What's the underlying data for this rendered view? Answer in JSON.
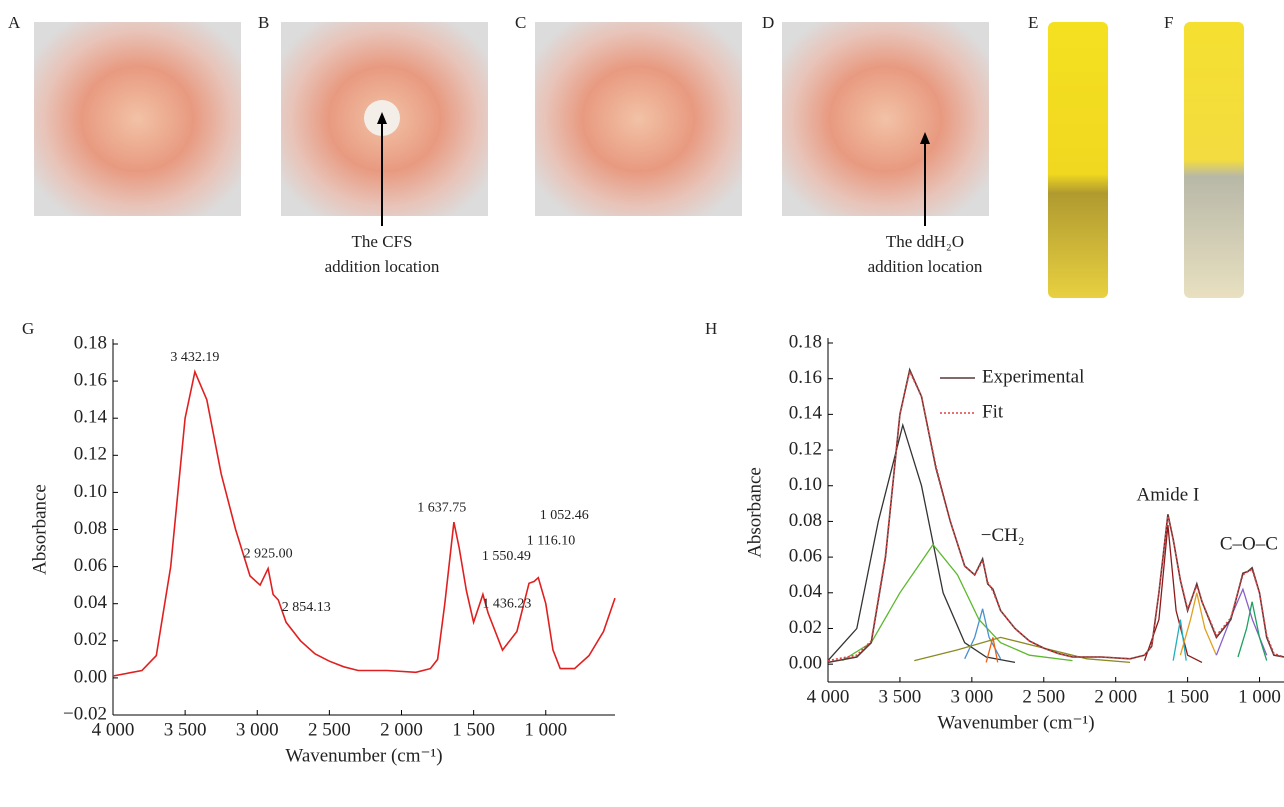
{
  "panels": {
    "labels": [
      "A",
      "B",
      "C",
      "D",
      "E",
      "F"
    ],
    "B_caption": [
      "The CFS",
      "addition location"
    ],
    "D_caption": [
      "The ddH₂O",
      "addition location"
    ]
  },
  "chart_data": [
    {
      "type": "line",
      "title": "G",
      "xlabel": "Wavenumber (cm⁻¹)",
      "ylabel": "Absorbance",
      "xlim": [
        4000,
        520
      ],
      "ylim": [
        -0.02,
        0.18
      ],
      "xticks": [
        {
          "value": 4000,
          "label": "4 000"
        },
        {
          "value": 3500,
          "label": "3 500"
        },
        {
          "value": 3000,
          "label": "3 000"
        },
        {
          "value": 2500,
          "label": "2 500"
        },
        {
          "value": 2000,
          "label": "2 000"
        },
        {
          "value": 1500,
          "label": "1 500"
        },
        {
          "value": 1000,
          "label": "1 000"
        }
      ],
      "yticks": [
        {
          "value": -0.02,
          "label": "−0.02"
        },
        {
          "value": 0,
          "label": "0.00"
        },
        0.02,
        0.04,
        0.06,
        0.08,
        {
          "value": 0.1,
          "label": "0.10"
        },
        0.12,
        0.14,
        0.16,
        0.18
      ],
      "x": [
        4000,
        3800,
        3700,
        3600,
        3500,
        3432,
        3350,
        3250,
        3150,
        3050,
        2980,
        2925,
        2890,
        2854,
        2800,
        2700,
        2600,
        2500,
        2400,
        2300,
        2100,
        1900,
        1800,
        1750,
        1700,
        1637,
        1600,
        1550,
        1500,
        1436,
        1400,
        1300,
        1200,
        1116,
        1080,
        1052,
        1000,
        950,
        900,
        800,
        700,
        600,
        520
      ],
      "series": [
        {
          "color": "#e02020",
          "values": [
            0.001,
            0.004,
            0.012,
            0.06,
            0.14,
            0.165,
            0.15,
            0.11,
            0.08,
            0.055,
            0.05,
            0.059,
            0.045,
            0.042,
            0.03,
            0.02,
            0.013,
            0.009,
            0.006,
            0.004,
            0.004,
            0.003,
            0.005,
            0.01,
            0.04,
            0.084,
            0.07,
            0.047,
            0.03,
            0.045,
            0.035,
            0.015,
            0.025,
            0.051,
            0.052,
            0.054,
            0.04,
            0.015,
            0.005,
            0.005,
            0.012,
            0.025,
            0.043
          ]
        }
      ],
      "annotations": [
        {
          "label": "3 432.19",
          "x": 3432.19
        },
        {
          "label": "2 925.00",
          "x": 2925.0
        },
        {
          "label": "2 854.13",
          "x": 2854.13
        },
        {
          "label": "1 637.75",
          "x": 1637.75
        },
        {
          "label": "1 550.49",
          "x": 1550.49
        },
        {
          "label": "1 436.23",
          "x": 1436.23
        },
        {
          "label": "1 116.10",
          "x": 1116.1
        },
        {
          "label": "1 052.46",
          "x": 1052.46
        }
      ]
    },
    {
      "type": "line",
      "title": "H",
      "xlabel": "Wavenumber (cm⁻¹)",
      "ylabel": "Absorbance",
      "xlim": [
        4000,
        830
      ],
      "ylim": [
        -0.01,
        0.18
      ],
      "xticks": [
        {
          "value": 4000,
          "label": "4 000"
        },
        {
          "value": 3500,
          "label": "3 500"
        },
        {
          "value": 3000,
          "label": "3 000"
        },
        {
          "value": 2500,
          "label": "2 500"
        },
        {
          "value": 2000,
          "label": "2 000"
        },
        {
          "value": 1500,
          "label": "1 500"
        },
        {
          "value": 1000,
          "label": "1 000"
        }
      ],
      "yticks": [
        {
          "value": 0,
          "label": "0.00"
        },
        0.02,
        0.04,
        0.06,
        0.08,
        {
          "value": 0.1,
          "label": "0.10"
        },
        0.12,
        0.14,
        0.16,
        0.18
      ],
      "x": [
        4000,
        3800,
        3700,
        3600,
        3500,
        3432,
        3350,
        3250,
        3150,
        3050,
        2980,
        2925,
        2890,
        2854,
        2800,
        2700,
        2600,
        2500,
        2400,
        2300,
        2100,
        1900,
        1800,
        1750,
        1700,
        1637,
        1600,
        1550,
        1500,
        1436,
        1400,
        1300,
        1200,
        1116,
        1080,
        1052,
        1000,
        950,
        900,
        830
      ],
      "series": [
        {
          "name": "Experimental",
          "color": "#5a3838",
          "values": [
            0.001,
            0.004,
            0.012,
            0.06,
            0.14,
            0.165,
            0.15,
            0.11,
            0.08,
            0.055,
            0.05,
            0.059,
            0.045,
            0.042,
            0.03,
            0.02,
            0.013,
            0.009,
            0.006,
            0.004,
            0.004,
            0.003,
            0.005,
            0.01,
            0.04,
            0.084,
            0.07,
            0.047,
            0.03,
            0.045,
            0.035,
            0.015,
            0.025,
            0.051,
            0.052,
            0.054,
            0.04,
            0.015,
            0.005,
            0.004
          ]
        },
        {
          "name": "Fit",
          "color": "#e04040",
          "dashed": true,
          "values": [
            0.002,
            0.005,
            0.013,
            0.061,
            0.14,
            0.164,
            0.15,
            0.111,
            0.08,
            0.055,
            0.05,
            0.058,
            0.046,
            0.041,
            0.03,
            0.02,
            0.013,
            0.009,
            0.006,
            0.004,
            0.004,
            0.003,
            0.005,
            0.01,
            0.04,
            0.083,
            0.07,
            0.047,
            0.031,
            0.044,
            0.035,
            0.016,
            0.026,
            0.05,
            0.052,
            0.053,
            0.04,
            0.016,
            0.006,
            0.004
          ]
        }
      ],
      "components": [
        {
          "color": "#333333",
          "x": [
            4000,
            3800,
            3650,
            3480,
            3350,
            3200,
            3050,
            2900,
            2700
          ],
          "values": [
            0.002,
            0.02,
            0.08,
            0.134,
            0.1,
            0.04,
            0.012,
            0.004,
            0.001
          ]
        },
        {
          "color": "#5cb82e",
          "x": [
            3900,
            3700,
            3500,
            3270,
            3100,
            2950,
            2800,
            2600,
            2300
          ],
          "values": [
            0.002,
            0.012,
            0.04,
            0.067,
            0.05,
            0.025,
            0.012,
            0.005,
            0.002
          ]
        },
        {
          "color": "#4a8fd0",
          "x": [
            3050,
            2980,
            2925,
            2880,
            2800
          ],
          "values": [
            0.003,
            0.015,
            0.031,
            0.015,
            0.003
          ]
        },
        {
          "color": "#f06010",
          "x": [
            2900,
            2854,
            2820
          ],
          "values": [
            0.001,
            0.015,
            0.001
          ]
        },
        {
          "color": "#8a8a20",
          "x": [
            3400,
            3100,
            2800,
            2500,
            2200,
            1900
          ],
          "values": [
            0.002,
            0.008,
            0.015,
            0.009,
            0.003,
            0.001
          ]
        },
        {
          "color": "#8b1a1a",
          "x": [
            1800,
            1700,
            1637,
            1580,
            1500,
            1400
          ],
          "values": [
            0.002,
            0.025,
            0.078,
            0.03,
            0.005,
            0.001
          ]
        },
        {
          "color": "#20b0c0",
          "x": [
            1600,
            1550,
            1510
          ],
          "values": [
            0.002,
            0.025,
            0.002
          ]
        },
        {
          "color": "#e0a020",
          "x": [
            1550,
            1480,
            1436,
            1380,
            1300
          ],
          "values": [
            0.005,
            0.025,
            0.04,
            0.02,
            0.005
          ]
        },
        {
          "color": "#8a60c8",
          "x": [
            1300,
            1180,
            1116,
            1050,
            950
          ],
          "values": [
            0.005,
            0.03,
            0.042,
            0.025,
            0.005
          ]
        },
        {
          "color": "#20a060",
          "x": [
            1150,
            1090,
            1052,
            1000,
            950
          ],
          "values": [
            0.004,
            0.02,
            0.035,
            0.015,
            0.002
          ]
        }
      ],
      "annotations": [
        {
          "label": "−CH₂",
          "x": 2925
        },
        {
          "label": "Amide I",
          "x": 1637
        },
        {
          "label": "C–O–C",
          "x": 1116
        }
      ]
    }
  ]
}
